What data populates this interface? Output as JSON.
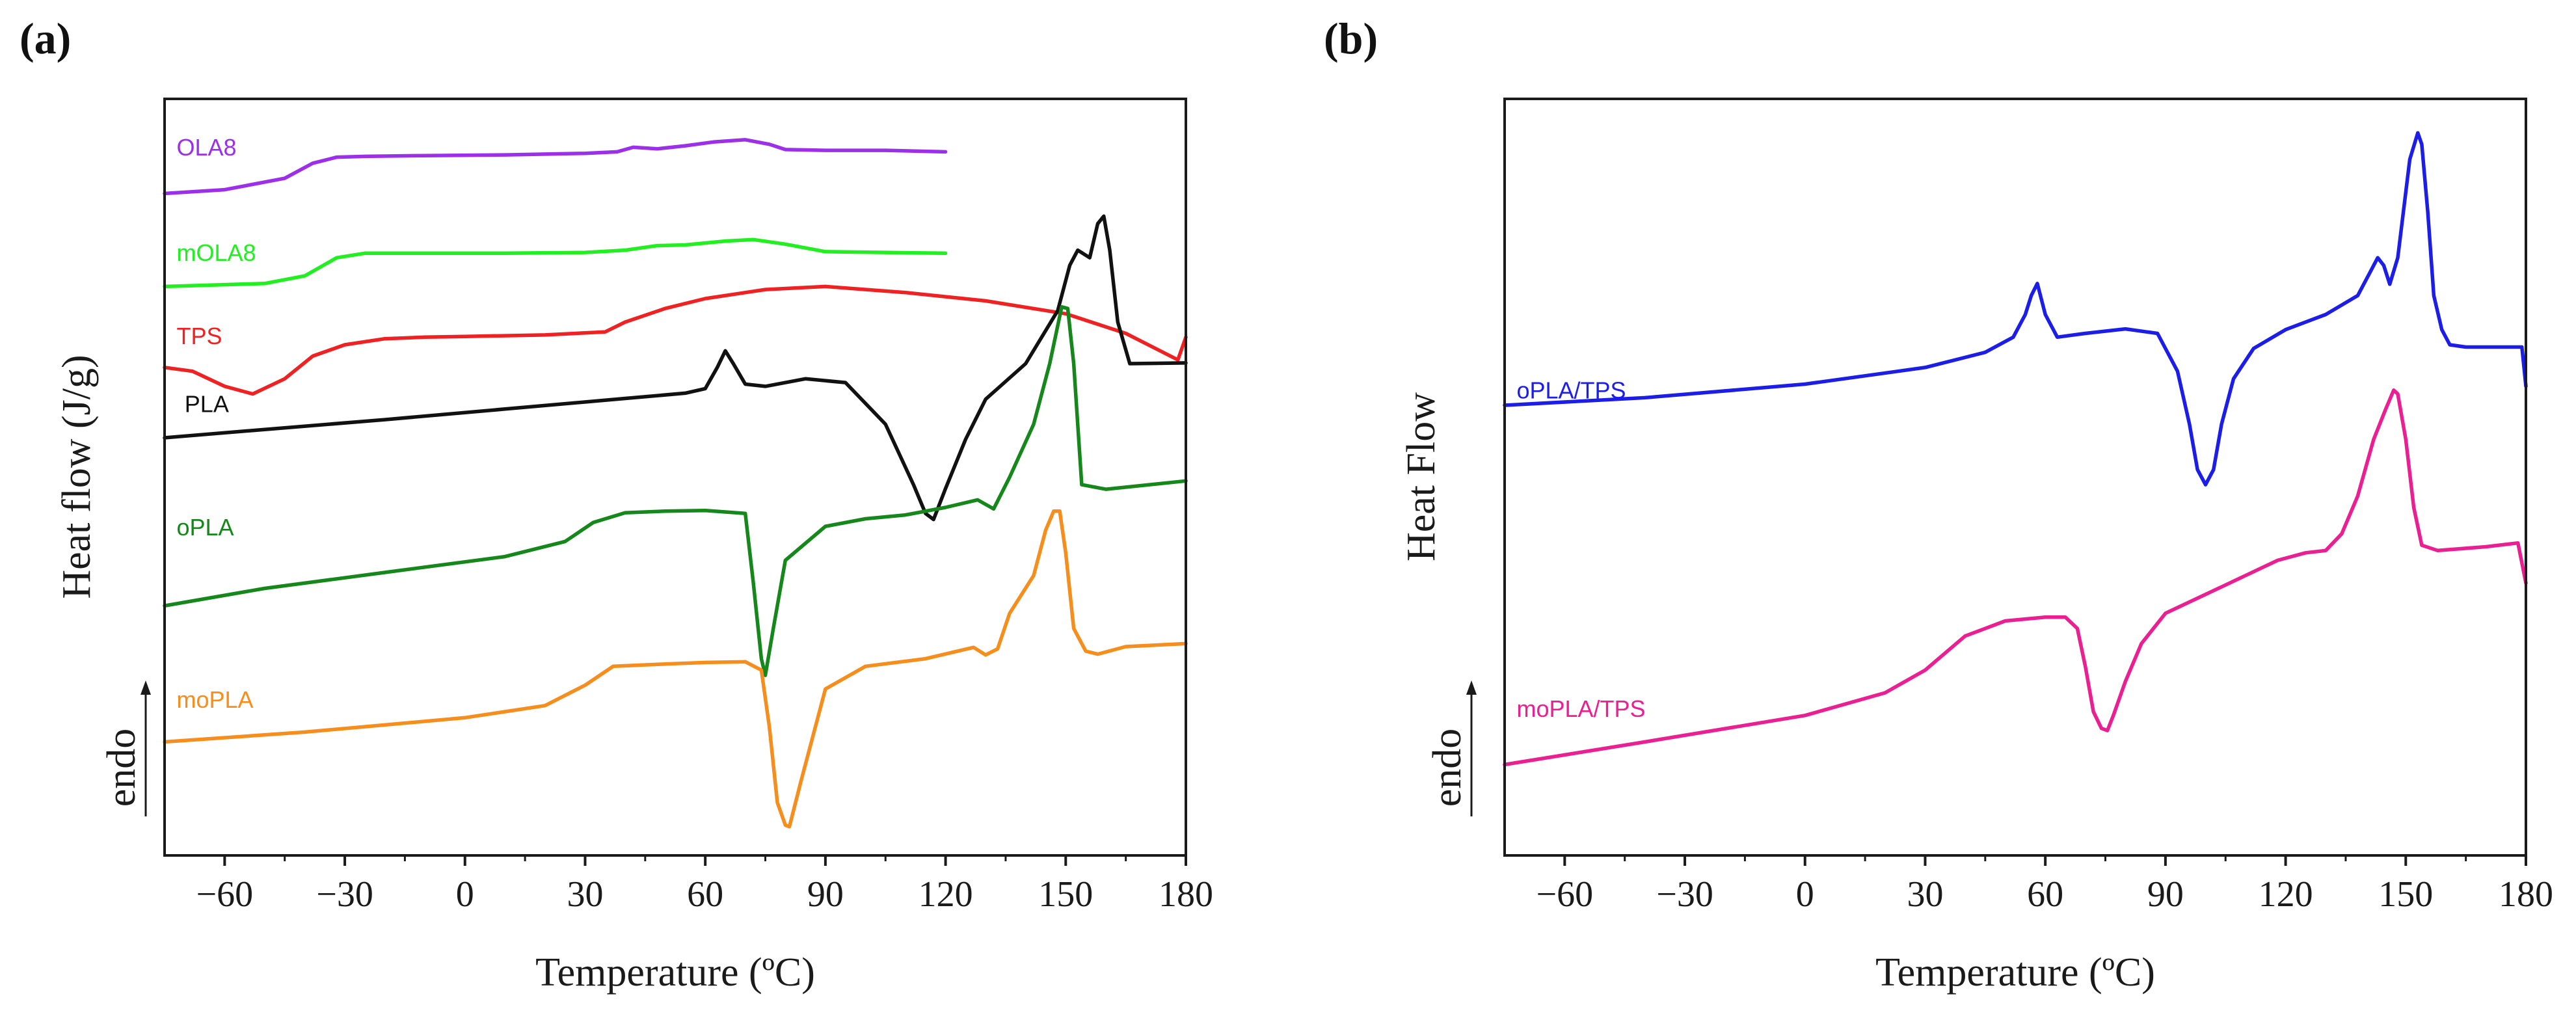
{
  "chart_data": [
    {
      "panel": "(a)",
      "type": "line",
      "xlabel": "Temperature (ºC)",
      "ylabel": "Heat flow (J/g)",
      "xlim": [
        -75,
        180
      ],
      "ylim": [
        0,
        100
      ],
      "xticks": [
        -60,
        -30,
        0,
        30,
        60,
        90,
        120,
        150,
        180
      ],
      "xtick_labels": [
        "−60",
        "−30",
        "0",
        "30",
        "60",
        "90",
        "120",
        "150",
        "180"
      ],
      "endo_label": "endo",
      "grid": false,
      "series": [
        {
          "name": "OLA8",
          "color": "#9b30e8",
          "label_at": [
            -72,
            92.5
          ],
          "x": [
            -75,
            -60,
            -45,
            -38,
            -32,
            -25,
            -10,
            10,
            30,
            38,
            42,
            48,
            55,
            62,
            70,
            76,
            80,
            90,
            105,
            120
          ],
          "y": [
            87.5,
            88.0,
            89.5,
            91.5,
            92.3,
            92.4,
            92.5,
            92.6,
            92.8,
            93.0,
            93.6,
            93.4,
            93.8,
            94.3,
            94.6,
            94.0,
            93.3,
            93.2,
            93.2,
            93.0
          ]
        },
        {
          "name": "mOLA8",
          "color": "#22ee22",
          "label_at": [
            -72,
            78.6
          ],
          "x": [
            -75,
            -50,
            -40,
            -32,
            -25,
            -10,
            10,
            30,
            40,
            48,
            55,
            65,
            72,
            80,
            90,
            105,
            120
          ],
          "y": [
            75.2,
            75.6,
            76.6,
            79.0,
            79.6,
            79.6,
            79.6,
            79.7,
            80.0,
            80.6,
            80.7,
            81.2,
            81.4,
            80.8,
            79.8,
            79.7,
            79.6
          ]
        },
        {
          "name": "TPS",
          "color": "#ee2222",
          "label_at": [
            -72,
            67.6
          ],
          "x": [
            -75,
            -68,
            -60,
            -53,
            -45,
            -38,
            -30,
            -20,
            -10,
            0,
            20,
            35,
            40,
            50,
            60,
            75,
            90,
            110,
            130,
            150,
            165,
            178,
            180
          ],
          "y": [
            64.5,
            64.0,
            62.0,
            61.0,
            63.0,
            66.0,
            67.5,
            68.3,
            68.5,
            68.6,
            68.8,
            69.2,
            70.5,
            72.3,
            73.6,
            74.8,
            75.2,
            74.4,
            73.3,
            71.6,
            69.0,
            65.5,
            68.5
          ]
        },
        {
          "name": "PLA",
          "color": "#111111",
          "label_at": [
            -70,
            58.6
          ],
          "x": [
            -75,
            -50,
            -20,
            10,
            40,
            55,
            60,
            63,
            65,
            67,
            70,
            75,
            85,
            95,
            105,
            112,
            115,
            117,
            120,
            125,
            130,
            140,
            148,
            151,
            153,
            156,
            158,
            159.5,
            161,
            163,
            166,
            180
          ],
          "y": [
            55.2,
            56.3,
            57.6,
            59.0,
            60.4,
            61.1,
            61.7,
            64.5,
            66.7,
            65.0,
            62.3,
            62.0,
            63.0,
            62.5,
            57.0,
            49.0,
            45.2,
            44.4,
            48.5,
            55.0,
            60.3,
            65.0,
            72.0,
            78.0,
            80.0,
            79.0,
            83.5,
            84.5,
            80.0,
            70.5,
            65.0,
            65.1
          ]
        },
        {
          "name": "oPLA",
          "color": "#15871b",
          "label_at": [
            -72,
            42.3
          ],
          "x": [
            -75,
            -50,
            -20,
            10,
            25,
            32,
            40,
            50,
            60,
            70,
            72,
            74,
            75,
            77,
            80,
            90,
            100,
            110,
            120,
            128,
            132,
            136,
            142,
            146,
            149,
            150.5,
            152,
            154,
            160,
            180
          ],
          "y": [
            33.0,
            35.3,
            37.4,
            39.5,
            41.5,
            44.0,
            45.3,
            45.5,
            45.6,
            45.2,
            36.0,
            26.0,
            23.8,
            30.0,
            39.0,
            43.5,
            44.5,
            45.0,
            46.0,
            47.0,
            45.8,
            50.0,
            57.0,
            65.0,
            72.5,
            72.3,
            65.0,
            49.0,
            48.4,
            49.5
          ]
        },
        {
          "name": "moPLA",
          "color": "#f58e1c",
          "label_at": [
            -72,
            19.5
          ],
          "x": [
            -75,
            -40,
            0,
            20,
            30,
            37,
            50,
            60,
            70,
            74,
            76,
            78,
            80,
            81,
            84,
            90,
            100,
            115,
            127,
            130,
            133,
            136,
            142,
            145,
            147,
            148.5,
            150,
            152,
            155,
            158,
            165,
            180
          ],
          "y": [
            15.0,
            16.3,
            18.2,
            19.8,
            22.5,
            25.0,
            25.3,
            25.5,
            25.6,
            24.5,
            17.0,
            7.0,
            4.0,
            3.8,
            10.0,
            22.0,
            25.0,
            26.0,
            27.5,
            26.5,
            27.3,
            32.0,
            37.0,
            43.0,
            45.5,
            45.5,
            40.0,
            30.0,
            27.0,
            26.6,
            27.6,
            28.0
          ]
        }
      ]
    },
    {
      "panel": "(b)",
      "type": "line",
      "xlabel": "Temperature (ºC)",
      "ylabel": "Heat Flow",
      "xlim": [
        -75,
        180
      ],
      "ylim": [
        0,
        100
      ],
      "xticks": [
        -60,
        -30,
        0,
        30,
        60,
        90,
        120,
        150,
        180
      ],
      "xtick_labels": [
        "−60",
        "−30",
        "0",
        "30",
        "60",
        "90",
        "120",
        "150",
        "180"
      ],
      "endo_label": "endo",
      "grid": false,
      "series": [
        {
          "name": "oPLA/TPS",
          "color": "#1c1ee8",
          "label_at": [
            -72,
            60.4
          ],
          "x": [
            -75,
            -40,
            0,
            30,
            45,
            52,
            55,
            56.5,
            58,
            60,
            63,
            70,
            80,
            88,
            93,
            96,
            98,
            100,
            102,
            104,
            107,
            112,
            120,
            130,
            138,
            141,
            143,
            144.5,
            146,
            148,
            151,
            153,
            154,
            155.5,
            157,
            159,
            161,
            165,
            175,
            179,
            180
          ],
          "y": [
            59.5,
            60.5,
            62.3,
            64.5,
            66.5,
            68.5,
            71.5,
            74.0,
            75.6,
            71.5,
            68.5,
            69.0,
            69.6,
            69.0,
            64.0,
            57.0,
            51.0,
            49.0,
            51.0,
            57.0,
            63.0,
            67.0,
            69.5,
            71.5,
            74.0,
            77.0,
            79.0,
            78.0,
            75.5,
            79.0,
            92.0,
            95.5,
            94.0,
            85.0,
            74.0,
            69.5,
            67.5,
            67.2,
            67.2,
            67.2,
            62.0
          ]
        },
        {
          "name": "moPLA/TPS",
          "color": "#ea1f92",
          "label_at": [
            -72,
            18.3
          ],
          "x": [
            -75,
            -40,
            0,
            20,
            30,
            40,
            50,
            60,
            65,
            68,
            70,
            72,
            74,
            75.5,
            77,
            80,
            84,
            90,
            100,
            110,
            118,
            125,
            130,
            134,
            138,
            142,
            145,
            147,
            148,
            150,
            152,
            154,
            158,
            170,
            178,
            180
          ],
          "y": [
            12.0,
            15.0,
            18.5,
            21.5,
            24.5,
            29.0,
            31.0,
            31.5,
            31.5,
            30.0,
            25.0,
            19.0,
            16.8,
            16.5,
            18.5,
            23.0,
            28.0,
            32.0,
            34.5,
            37.0,
            39.0,
            40.0,
            40.3,
            42.5,
            47.5,
            55.0,
            59.0,
            61.5,
            61.0,
            55.0,
            46.0,
            41.0,
            40.3,
            40.8,
            41.3,
            36.0
          ]
        }
      ]
    }
  ]
}
